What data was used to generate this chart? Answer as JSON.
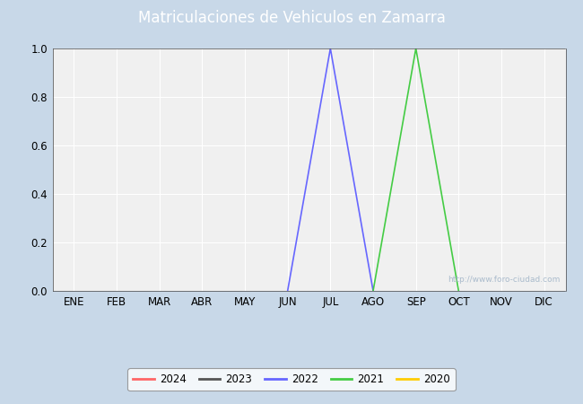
{
  "title": "Matriculaciones de Vehiculos en Zamarra",
  "title_color": "#ffffff",
  "title_bg_color": "#4a86d8",
  "months": [
    "ENE",
    "FEB",
    "MAR",
    "ABR",
    "MAY",
    "JUN",
    "JUL",
    "AGO",
    "SEP",
    "OCT",
    "NOV",
    "DIC"
  ],
  "month_indices": [
    1,
    2,
    3,
    4,
    5,
    6,
    7,
    8,
    9,
    10,
    11,
    12
  ],
  "ylim": [
    0.0,
    1.0
  ],
  "yticks": [
    0.0,
    0.2,
    0.4,
    0.6,
    0.8,
    1.0
  ],
  "series": [
    {
      "year": "2024",
      "color": "#ff6666",
      "data": {}
    },
    {
      "year": "2023",
      "color": "#555555",
      "data": {}
    },
    {
      "year": "2022",
      "color": "#6666ff",
      "data": {
        "6": 0.0,
        "7": 1.0,
        "8": 0.0
      }
    },
    {
      "year": "2021",
      "color": "#44cc44",
      "data": {
        "8": 0.0,
        "9": 1.0,
        "10": 0.0
      }
    },
    {
      "year": "2020",
      "color": "#ffcc00",
      "data": {}
    }
  ],
  "outer_bg_color": "#c8d8e8",
  "plot_bg_color": "#f0f0f0",
  "grid_color": "#ffffff",
  "watermark": "http://www.foro-ciudad.com",
  "watermark_color": "#aabbcc",
  "figsize": [
    6.5,
    4.5
  ],
  "dpi": 100
}
